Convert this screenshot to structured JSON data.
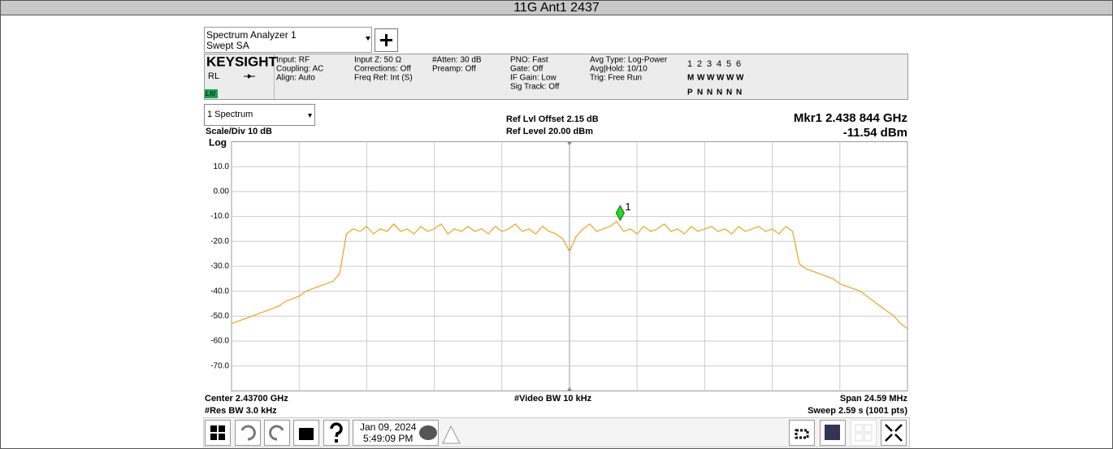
{
  "header": {
    "title": "11G Ant1 2437"
  },
  "analyzer": {
    "window_title": "Spectrum Analyzer 1",
    "mode": "Swept SA"
  },
  "info": {
    "brand": "KEYSIGHT",
    "rl": "RL",
    "badge": "LXI",
    "columns": [
      [
        "Input: RF",
        "Coupling: AC",
        "Align: Auto"
      ],
      [
        "Input Z: 50 Ω",
        "Corrections: Off",
        "Freq Ref: Int (S)"
      ],
      [
        "#Atten: 30 dB",
        "Preamp: Off"
      ],
      [
        "PNO: Fast",
        "Gate: Off",
        "IF Gain: Low",
        "Sig Track: Off"
      ],
      [
        "Avg Type: Log-Power",
        "Avg|Hold: 10/10",
        "Trig: Free Run"
      ]
    ],
    "trace_numbers": [
      "1",
      "2",
      "3",
      "4",
      "5",
      "6"
    ],
    "trace_types": [
      "M",
      "W",
      "W",
      "W",
      "W",
      "W"
    ],
    "trace_detectors": [
      "P",
      "N",
      "N",
      "N",
      "N",
      "N"
    ]
  },
  "window": {
    "name": "1 Spectrum",
    "scale": "Scale/Div 10 dB",
    "scale_type": "Log",
    "ref_offset": "Ref Lvl Offset 2.15 dB",
    "ref_level": "Ref Level 20.00 dBm",
    "marker_freq": "Mkr1  2.438 844 GHz",
    "marker_level": "-11.54 dBm"
  },
  "spectrum": {
    "type": "line",
    "ylim": [
      -80,
      20
    ],
    "yticks": [
      {
        "value": 10,
        "label": "10.0"
      },
      {
        "value": 0,
        "label": "0.00"
      },
      {
        "value": -10,
        "label": "-10.0"
      },
      {
        "value": -20,
        "label": "-20.0"
      },
      {
        "value": -30,
        "label": "-30.0"
      },
      {
        "value": -40,
        "label": "-40.0"
      },
      {
        "value": -50,
        "label": "-50.0"
      },
      {
        "value": -60,
        "label": "-60.0"
      },
      {
        "value": -70,
        "label": "-70.0"
      }
    ],
    "xlim": [
      2.424705,
      2.449295
    ],
    "grid": true,
    "color": "#f0a020",
    "values": [
      -53,
      -52,
      -51,
      -50,
      -49,
      -48,
      -47,
      -46,
      -44,
      -43,
      -42,
      -40,
      -39,
      -38,
      -37,
      -36,
      -33,
      -17,
      -15,
      -16,
      -14,
      -17,
      -15,
      -16,
      -13,
      -16,
      -15,
      -17,
      -14,
      -16,
      -15,
      -13,
      -17,
      -15,
      -16,
      -14,
      -16,
      -15,
      -17,
      -14,
      -16,
      -15,
      -13,
      -16,
      -15,
      -17,
      -14,
      -16,
      -17,
      -19,
      -24,
      -18,
      -15,
      -13,
      -16,
      -15,
      -14,
      -12,
      -16,
      -15,
      -17,
      -14,
      -16,
      -15,
      -13,
      -16,
      -15,
      -17,
      -14,
      -16,
      -15,
      -14,
      -16,
      -15,
      -17,
      -14,
      -16,
      -15,
      -14,
      -16,
      -15,
      -17,
      -14,
      -16,
      -29,
      -31,
      -32,
      -33,
      -34,
      -35,
      -37,
      -38,
      -39,
      -40,
      -42,
      -44,
      -46,
      -48,
      -50,
      -53,
      -55
    ],
    "marker": {
      "label": "1",
      "x": 2.438844,
      "value": -11.54,
      "color": "#22dd22"
    }
  },
  "footer": {
    "center": "Center 2.43700 GHz",
    "res_bw": "#Res BW 3.0 kHz",
    "video_bw": "#Video BW 10 kHz",
    "span": "Span 24.59 MHz",
    "sweep": "Sweep 2.59 s (1001 pts)"
  },
  "taskbar": {
    "date": "Jan 09, 2024",
    "time": "5:49:09 PM"
  }
}
